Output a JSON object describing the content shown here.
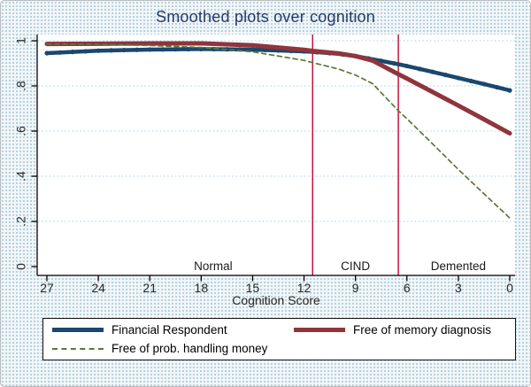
{
  "figure": {
    "title": "Smoothed plots over cognition"
  },
  "chart_data": {
    "type": "line",
    "title": "Smoothed plots over cognition",
    "xlabel": "Cognition Score",
    "ylabel": "",
    "x_axis_reversed": true,
    "xlim": [
      27,
      0
    ],
    "ylim": [
      0,
      1
    ],
    "x_ticks": [
      27,
      24,
      21,
      18,
      15,
      12,
      9,
      6,
      3,
      0
    ],
    "y_ticks": [
      0,
      0.2,
      0.4,
      0.6,
      0.8,
      1
    ],
    "y_tick_labels": [
      "0",
      ".2",
      ".4",
      ".6",
      ".8",
      "1"
    ],
    "grid": "horizontal dotted light-blue",
    "legend_position": "bottom",
    "x": [
      27,
      24,
      21,
      18,
      15,
      12,
      11.5,
      10,
      9,
      8,
      6.5,
      6,
      4.5,
      3,
      1.5,
      0
    ],
    "series": [
      {
        "name": "Financial Respondent",
        "color": "#1a476f",
        "style": "solid",
        "line_width": 4.5,
        "markers": true,
        "values": [
          0.945,
          0.956,
          0.961,
          0.963,
          0.961,
          0.953,
          0.951,
          0.942,
          0.932,
          0.918,
          0.896,
          0.888,
          0.862,
          0.835,
          0.808,
          0.78
        ]
      },
      {
        "name": "Free of memory diagnosis",
        "color": "#90353b",
        "style": "solid",
        "line_width": 5,
        "markers": false,
        "values": [
          0.986,
          0.987,
          0.988,
          0.988,
          0.98,
          0.96,
          0.955,
          0.944,
          0.932,
          0.912,
          0.852,
          0.833,
          0.773,
          0.713,
          0.652,
          0.59
        ]
      },
      {
        "name": "Free of prob. handling money",
        "color": "#5a7837",
        "style": "dashed",
        "line_width": 1.7,
        "markers": false,
        "values": [
          0.985,
          0.984,
          0.979,
          0.97,
          0.951,
          0.913,
          0.903,
          0.875,
          0.848,
          0.81,
          0.69,
          0.655,
          0.543,
          0.43,
          0.322,
          0.215
        ]
      }
    ],
    "reference_lines": {
      "x_values": [
        11.5,
        6.5
      ],
      "color": "#c10534"
    },
    "annotations": [
      {
        "text": "Normal",
        "x": 17.3
      },
      {
        "text": "CIND",
        "x": 9
      },
      {
        "text": "Demented",
        "x": 3.0
      }
    ]
  },
  "colors": {
    "background": "#e8f0f4",
    "plot_background": "#ffffff",
    "gridline": "#9fd5e8",
    "axis": "#000000",
    "title": "#233b6c",
    "tick_text": "#262626",
    "annotation_text": "#1a1a1a",
    "reference_line": "#c10534"
  }
}
